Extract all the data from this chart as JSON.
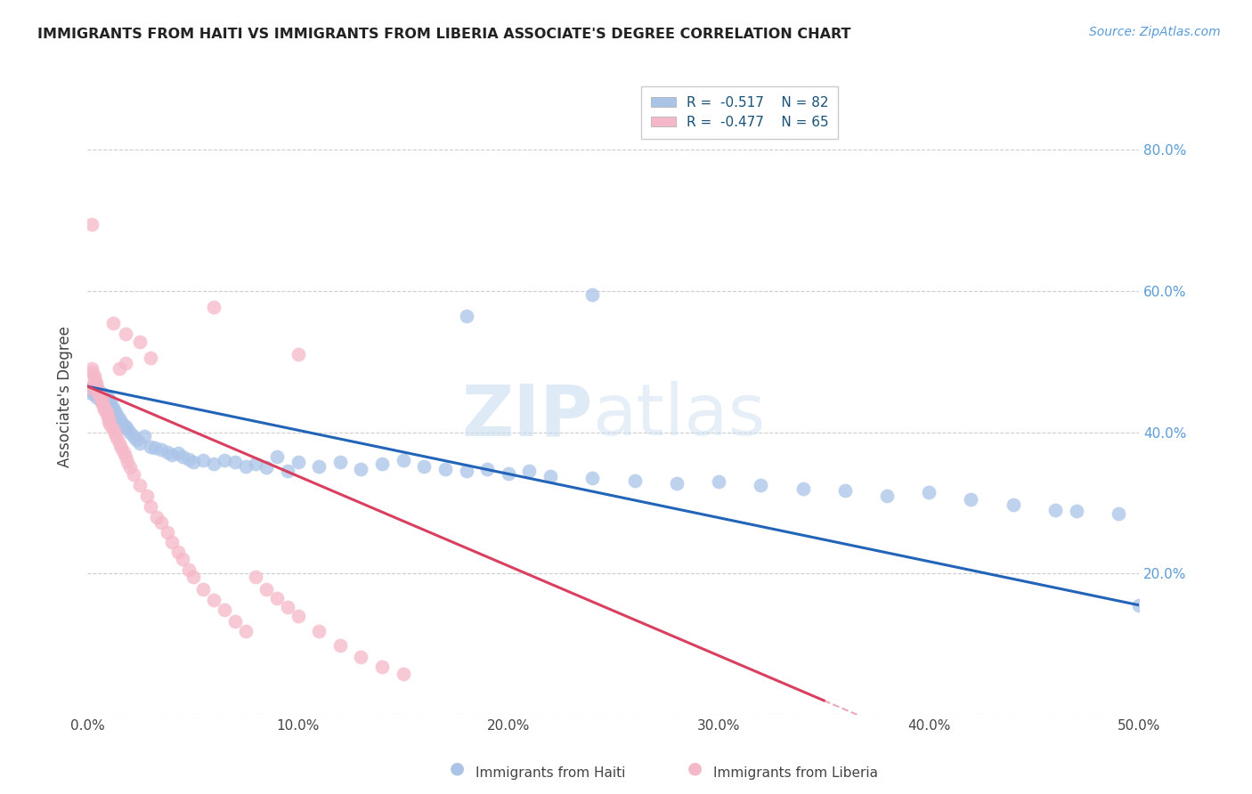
{
  "title": "IMMIGRANTS FROM HAITI VS IMMIGRANTS FROM LIBERIA ASSOCIATE'S DEGREE CORRELATION CHART",
  "source": "Source: ZipAtlas.com",
  "ylabel": "Associate's Degree",
  "right_yticks": [
    "80.0%",
    "60.0%",
    "40.0%",
    "20.0%"
  ],
  "right_ytick_vals": [
    0.8,
    0.6,
    0.4,
    0.2
  ],
  "haiti_color": "#aac4e8",
  "liberia_color": "#f5b8c8",
  "haiti_line_color": "#2264b8",
  "liberia_line_color": "#d94060",
  "background_color": "#ffffff",
  "grid_color": "#c8c8c8",
  "xlim": [
    0.0,
    0.5
  ],
  "ylim": [
    0.0,
    0.9
  ],
  "xticks": [
    0.0,
    0.1,
    0.2,
    0.3,
    0.4,
    0.5
  ],
  "xtick_labels": [
    "0.0%",
    "10.0%",
    "20.0%",
    "30.0%",
    "40.0%",
    "50.0%"
  ],
  "haiti_scatter_x": [
    0.001,
    0.002,
    0.002,
    0.003,
    0.003,
    0.004,
    0.004,
    0.005,
    0.005,
    0.006,
    0.006,
    0.007,
    0.007,
    0.008,
    0.008,
    0.009,
    0.009,
    0.01,
    0.01,
    0.011,
    0.011,
    0.012,
    0.013,
    0.014,
    0.015,
    0.016,
    0.017,
    0.018,
    0.019,
    0.02,
    0.022,
    0.023,
    0.025,
    0.027,
    0.03,
    0.032,
    0.035,
    0.038,
    0.04,
    0.043,
    0.045,
    0.048,
    0.05,
    0.055,
    0.06,
    0.065,
    0.07,
    0.075,
    0.08,
    0.085,
    0.09,
    0.095,
    0.1,
    0.11,
    0.12,
    0.13,
    0.14,
    0.15,
    0.16,
    0.17,
    0.18,
    0.19,
    0.2,
    0.21,
    0.22,
    0.24,
    0.26,
    0.28,
    0.3,
    0.32,
    0.34,
    0.36,
    0.38,
    0.4,
    0.42,
    0.44,
    0.46,
    0.47,
    0.49,
    0.5,
    0.24,
    0.18
  ],
  "haiti_scatter_y": [
    0.46,
    0.455,
    0.465,
    0.458,
    0.462,
    0.45,
    0.465,
    0.455,
    0.46,
    0.445,
    0.452,
    0.448,
    0.455,
    0.442,
    0.45,
    0.445,
    0.45,
    0.44,
    0.448,
    0.438,
    0.442,
    0.435,
    0.43,
    0.425,
    0.42,
    0.415,
    0.41,
    0.408,
    0.405,
    0.4,
    0.395,
    0.39,
    0.385,
    0.395,
    0.38,
    0.378,
    0.375,
    0.372,
    0.368,
    0.37,
    0.365,
    0.362,
    0.358,
    0.36,
    0.355,
    0.36,
    0.358,
    0.352,
    0.355,
    0.35,
    0.365,
    0.345,
    0.358,
    0.352,
    0.358,
    0.348,
    0.355,
    0.36,
    0.352,
    0.348,
    0.345,
    0.348,
    0.342,
    0.345,
    0.338,
    0.335,
    0.332,
    0.328,
    0.33,
    0.325,
    0.32,
    0.318,
    0.31,
    0.315,
    0.305,
    0.298,
    0.29,
    0.288,
    0.285,
    0.155,
    0.595,
    0.565
  ],
  "liberia_scatter_x": [
    0.001,
    0.002,
    0.002,
    0.003,
    0.003,
    0.004,
    0.004,
    0.005,
    0.005,
    0.006,
    0.006,
    0.007,
    0.007,
    0.008,
    0.008,
    0.009,
    0.009,
    0.01,
    0.01,
    0.011,
    0.012,
    0.013,
    0.014,
    0.015,
    0.016,
    0.017,
    0.018,
    0.019,
    0.02,
    0.022,
    0.025,
    0.028,
    0.03,
    0.033,
    0.035,
    0.038,
    0.04,
    0.043,
    0.045,
    0.048,
    0.05,
    0.055,
    0.06,
    0.065,
    0.07,
    0.075,
    0.08,
    0.085,
    0.09,
    0.095,
    0.1,
    0.11,
    0.12,
    0.13,
    0.14,
    0.15,
    0.002,
    0.06,
    0.012,
    0.018,
    0.025,
    0.1,
    0.03,
    0.018,
    0.015
  ],
  "liberia_scatter_y": [
    0.462,
    0.49,
    0.485,
    0.475,
    0.48,
    0.47,
    0.465,
    0.46,
    0.455,
    0.452,
    0.448,
    0.445,
    0.44,
    0.435,
    0.432,
    0.428,
    0.425,
    0.42,
    0.415,
    0.41,
    0.405,
    0.398,
    0.392,
    0.385,
    0.378,
    0.372,
    0.365,
    0.358,
    0.35,
    0.34,
    0.325,
    0.31,
    0.295,
    0.28,
    0.272,
    0.258,
    0.245,
    0.23,
    0.22,
    0.205,
    0.195,
    0.178,
    0.162,
    0.148,
    0.132,
    0.118,
    0.195,
    0.178,
    0.165,
    0.152,
    0.14,
    0.118,
    0.098,
    0.082,
    0.068,
    0.058,
    0.695,
    0.578,
    0.555,
    0.54,
    0.528,
    0.51,
    0.505,
    0.498,
    0.49
  ]
}
